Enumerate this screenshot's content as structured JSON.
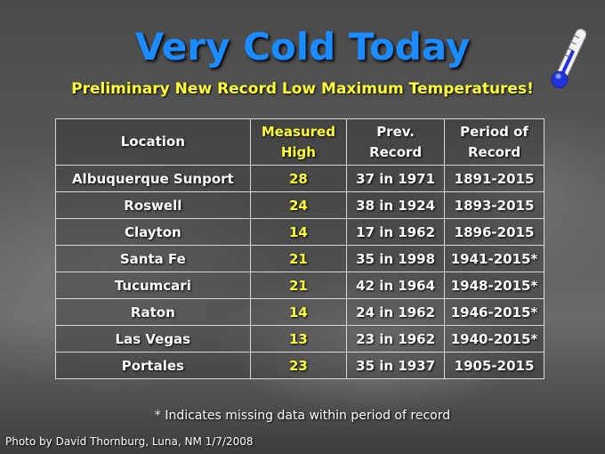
{
  "header": {
    "title": "Very Cold Today",
    "subtitle": "Preliminary New Record Low Maximum Temperatures!"
  },
  "table": {
    "columns": [
      [
        "Location"
      ],
      [
        "Measured",
        "High"
      ],
      [
        "Prev.",
        "Record"
      ],
      [
        "Period of",
        "Record"
      ]
    ],
    "rows": [
      [
        "Albuquerque Sunport",
        28,
        "37 in 1971",
        "1891-2015"
      ],
      [
        "Roswell",
        24,
        "38 in 1924",
        "1893-2015"
      ],
      [
        "Clayton",
        14,
        "17 in 1962",
        "1896-2015"
      ],
      [
        "Santa Fe",
        21,
        "35 in 1998",
        "1941-2015*"
      ],
      [
        "Tucumcari",
        21,
        "42 in 1964",
        "1948-2015*"
      ],
      [
        "Raton",
        14,
        "24 in 1962",
        "1946-2015*"
      ],
      [
        "Las Vegas",
        13,
        "23 in 1962",
        "1940-2015*"
      ],
      [
        "Portales",
        23,
        "35 in 1937",
        "1905-2015"
      ]
    ]
  },
  "footnote": "* Indicates missing data within period of record",
  "credit": "Photo by David Thornburg, Luna, NM 1/7/2008"
}
